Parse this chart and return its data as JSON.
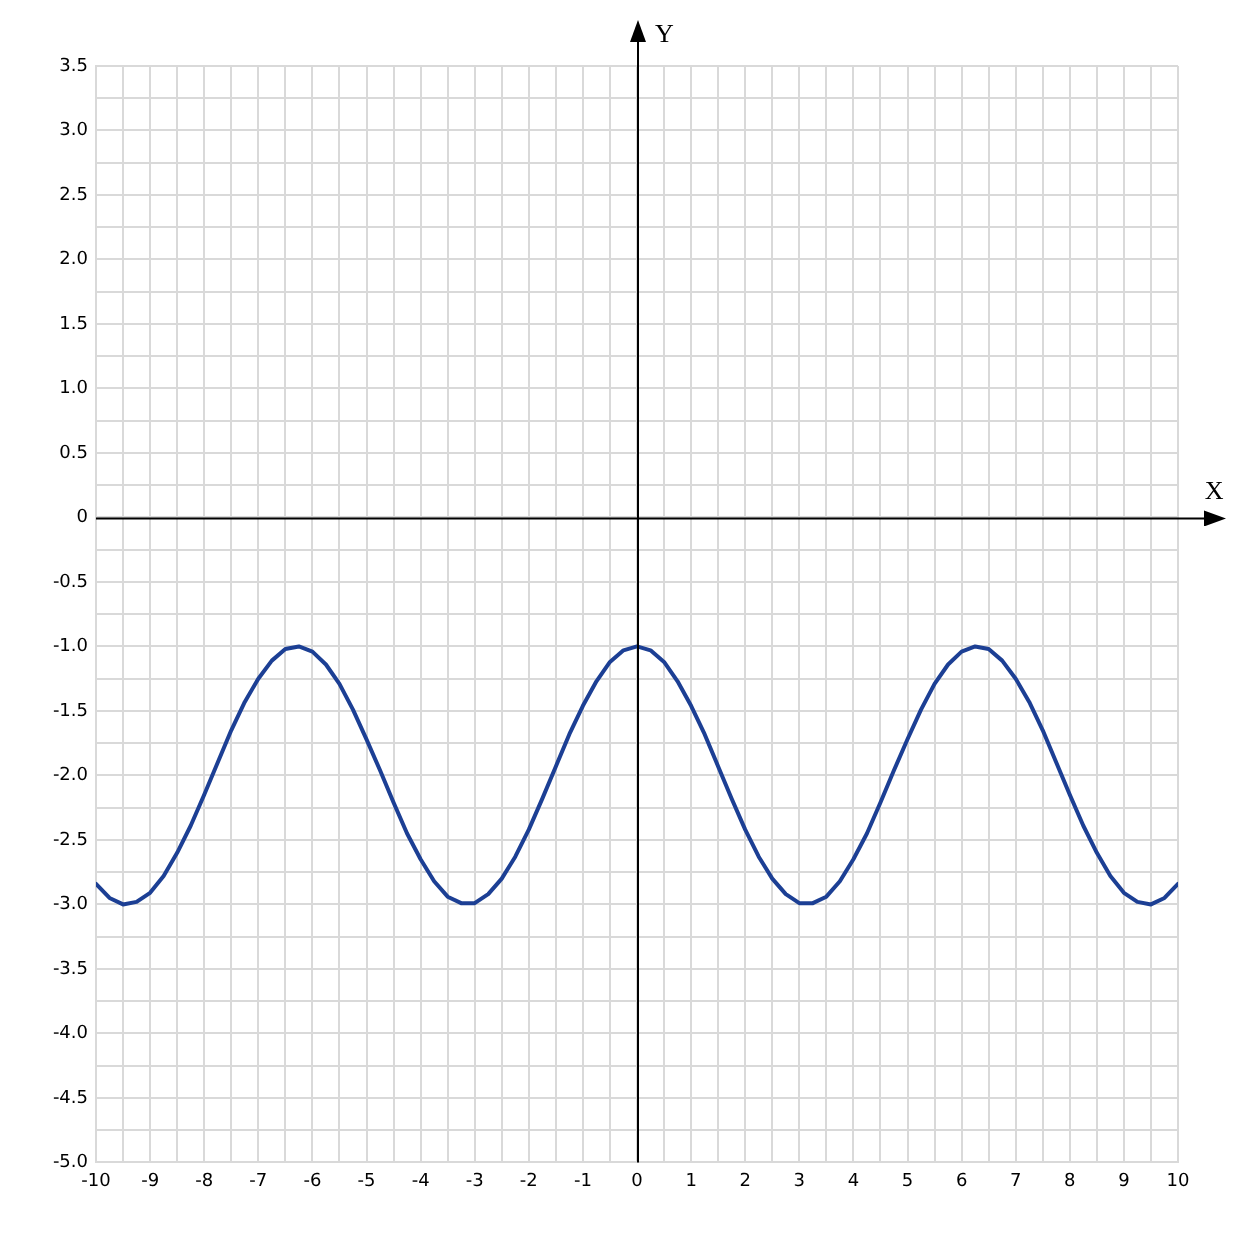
{
  "chart_data": {
    "type": "line",
    "xlabel": "X",
    "ylabel": "Y",
    "x": [
      -10,
      -9.75,
      -9.5,
      -9.25,
      -9,
      -8.75,
      -8.5,
      -8.25,
      -8,
      -7.75,
      -7.5,
      -7.25,
      -7,
      -6.75,
      -6.5,
      -6.25,
      -6,
      -5.75,
      -5.5,
      -5.25,
      -5,
      -4.75,
      -4.5,
      -4.25,
      -4,
      -3.75,
      -3.5,
      -3.25,
      -3,
      -2.75,
      -2.5,
      -2.25,
      -2,
      -1.75,
      -1.5,
      -1.25,
      -1,
      -0.75,
      -0.5,
      -0.25,
      0,
      0.25,
      0.5,
      0.75,
      1,
      1.25,
      1.5,
      1.75,
      2,
      2.25,
      2.5,
      2.75,
      3,
      3.25,
      3.5,
      3.75,
      4,
      4.25,
      4.5,
      4.75,
      5,
      5.25,
      5.5,
      5.75,
      6,
      6.25,
      6.5,
      6.75,
      7,
      7.25,
      7.5,
      7.75,
      8,
      8.25,
      8.5,
      8.75,
      9,
      9.25,
      9.5,
      9.75,
      10
    ],
    "series": [
      {
        "color": "#1c3f94",
        "values": [
          -2.84,
          -2.95,
          -3.0,
          -2.98,
          -2.91,
          -2.78,
          -2.6,
          -2.39,
          -2.15,
          -1.9,
          -1.65,
          -1.43,
          -1.25,
          -1.11,
          -1.02,
          -1.0,
          -1.04,
          -1.14,
          -1.29,
          -1.49,
          -1.72,
          -1.96,
          -2.21,
          -2.45,
          -2.65,
          -2.82,
          -2.94,
          -2.99,
          -2.99,
          -2.92,
          -2.8,
          -2.63,
          -2.42,
          -2.18,
          -1.93,
          -1.68,
          -1.46,
          -1.27,
          -1.12,
          -1.03,
          -1.0,
          -1.03,
          -1.12,
          -1.27,
          -1.46,
          -1.68,
          -1.93,
          -2.18,
          -2.42,
          -2.63,
          -2.8,
          -2.92,
          -2.99,
          -2.99,
          -2.94,
          -2.82,
          -2.65,
          -2.45,
          -2.21,
          -1.96,
          -1.72,
          -1.49,
          -1.29,
          -1.14,
          -1.04,
          -1.0,
          -1.02,
          -1.11,
          -1.25,
          -1.43,
          -1.65,
          -1.9,
          -2.15,
          -2.39,
          -2.6,
          -2.78,
          -2.91,
          -2.98,
          -3.0,
          -2.95,
          -2.84
        ]
      }
    ],
    "xlim": [
      -10,
      10
    ],
    "ylim": [
      -5,
      3.5
    ],
    "xticks": [
      -10,
      {
        "value": -9.5,
        "label": null
      },
      -9,
      {
        "value": -8.5,
        "label": null
      },
      -8,
      {
        "value": -7.5,
        "label": null
      },
      -7,
      {
        "value": -6.5,
        "label": null
      },
      -6,
      {
        "value": -5.5,
        "label": null
      },
      -5,
      {
        "value": -4.5,
        "label": null
      },
      -4,
      {
        "value": -3.5,
        "label": null
      },
      -3,
      {
        "value": -2.5,
        "label": null
      },
      -2,
      {
        "value": -1.5,
        "label": null
      },
      -1,
      {
        "value": -0.5,
        "label": null
      },
      0,
      {
        "value": 0.5,
        "label": null
      },
      1,
      {
        "value": 1.5,
        "label": null
      },
      2,
      {
        "value": 2.5,
        "label": null
      },
      3,
      {
        "value": 3.5,
        "label": null
      },
      4,
      {
        "value": 4.5,
        "label": null
      },
      5,
      {
        "value": 5.5,
        "label": null
      },
      6,
      {
        "value": 6.5,
        "label": null
      },
      7,
      {
        "value": 7.5,
        "label": null
      },
      8,
      {
        "value": 8.5,
        "label": null
      },
      9,
      {
        "value": 9.5,
        "label": null
      },
      10
    ],
    "yticks": [
      {
        "value": -5,
        "label": "-5.0"
      },
      {
        "value": -4.75,
        "label": null
      },
      -4.5,
      {
        "value": -4.25,
        "label": null
      },
      {
        "value": -4,
        "label": "-4.0"
      },
      {
        "value": -3.75,
        "label": null
      },
      -3.5,
      {
        "value": -3.25,
        "label": null
      },
      {
        "value": -3,
        "label": "-3.0"
      },
      {
        "value": -2.75,
        "label": null
      },
      -2.5,
      {
        "value": -2.25,
        "label": null
      },
      {
        "value": -2,
        "label": "-2.0"
      },
      {
        "value": -1.75,
        "label": null
      },
      -1.5,
      {
        "value": -1.25,
        "label": null
      },
      {
        "value": -1,
        "label": "-1.0"
      },
      {
        "value": -0.75,
        "label": null
      },
      -0.5,
      {
        "value": -0.25,
        "label": null
      },
      0,
      {
        "value": 0.25,
        "label": null
      },
      0.5,
      {
        "value": 0.75,
        "label": null
      },
      {
        "value": 1,
        "label": "1.0"
      },
      {
        "value": 1.25,
        "label": null
      },
      1.5,
      {
        "value": 1.75,
        "label": null
      },
      {
        "value": 2,
        "label": "2.0"
      },
      {
        "value": 2.25,
        "label": null
      },
      2.5,
      {
        "value": 2.75,
        "label": null
      },
      {
        "value": 3,
        "label": "3.0"
      },
      {
        "value": 3.25,
        "label": null
      },
      3.5
    ],
    "grid": true,
    "legend": false,
    "marker": "none",
    "line_style": "solid"
  }
}
